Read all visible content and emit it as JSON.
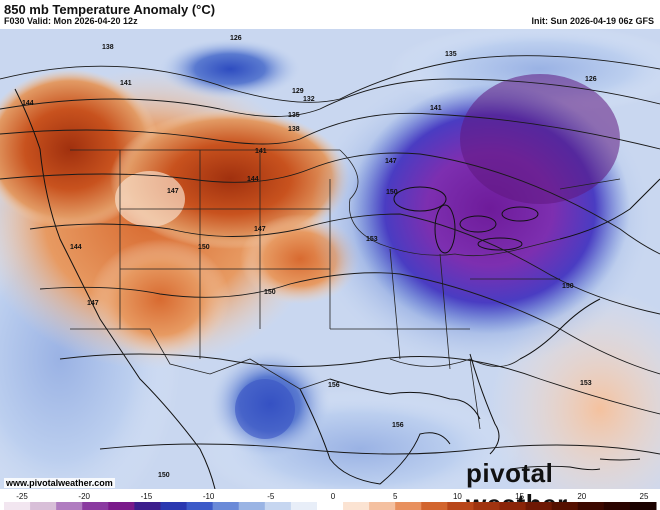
{
  "header": {
    "title": "850 mb Temperature Anomaly (°C)",
    "valid": "F030 Valid: Mon 2026-04-20 12z",
    "init": "Init: Sun 2026-04-19 06z GFS"
  },
  "footer": {
    "url": "www.pivotalweather.com",
    "brand": "pivotal weather"
  },
  "colorbar": {
    "ticks": [
      "-25",
      "-20",
      "-15",
      "-10",
      "-5",
      "0",
      "5",
      "10",
      "15",
      "20",
      "25"
    ],
    "colors": [
      "#f2e6f0",
      "#d8bfd8",
      "#b07cc0",
      "#8a3aa0",
      "#7a1a8a",
      "#3c1e8c",
      "#2a38b0",
      "#3c5ac8",
      "#6a8ad8",
      "#9ab4e4",
      "#c6d6f0",
      "#e8eef8",
      "#ffffff",
      "#fbe3d2",
      "#f4c0a0",
      "#e8905e",
      "#d2652e",
      "#b8461a",
      "#a03410",
      "#8a2408",
      "#6e1804",
      "#551000",
      "#3c0800",
      "#2a0400",
      "#1a0200"
    ]
  },
  "contours": {
    "labels": [
      "126",
      "129",
      "132",
      "135",
      "138",
      "141",
      "144",
      "147",
      "150",
      "153",
      "156"
    ]
  }
}
